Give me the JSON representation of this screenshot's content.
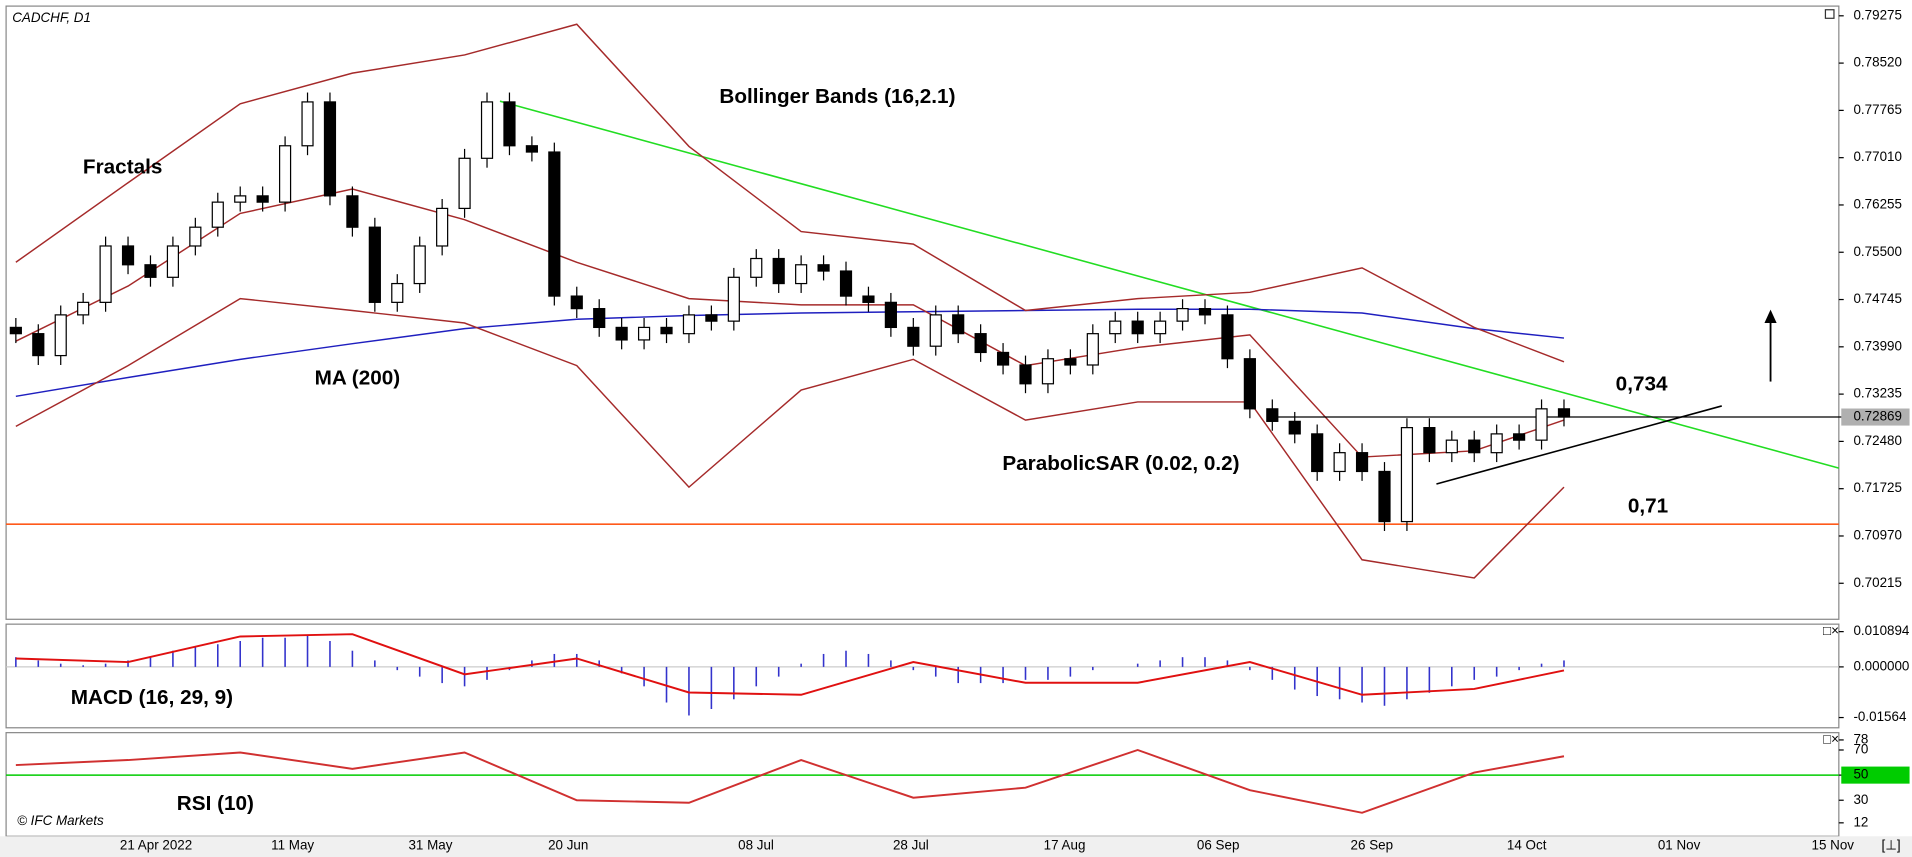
{
  "chart_data": [
    {
      "type": "candlestick",
      "title": "CADCHF, D1",
      "up_color": "#ffffff",
      "down_color": "#000000",
      "ohlc": [
        [
          0.743,
          0.7445,
          0.7405,
          0.742
        ],
        [
          0.742,
          0.7435,
          0.737,
          0.7385
        ],
        [
          0.7385,
          0.7465,
          0.737,
          0.745
        ],
        [
          0.745,
          0.7485,
          0.7435,
          0.747
        ],
        [
          0.747,
          0.7575,
          0.7455,
          0.756
        ],
        [
          0.756,
          0.7575,
          0.7515,
          0.753
        ],
        [
          0.753,
          0.7545,
          0.7495,
          0.751
        ],
        [
          0.751,
          0.7575,
          0.7495,
          0.756
        ],
        [
          0.756,
          0.7605,
          0.7545,
          0.759
        ],
        [
          0.759,
          0.7645,
          0.7575,
          0.763
        ],
        [
          0.763,
          0.7655,
          0.7615,
          0.764
        ],
        [
          0.764,
          0.7655,
          0.7615,
          0.763
        ],
        [
          0.763,
          0.7735,
          0.7615,
          0.772
        ],
        [
          0.772,
          0.7805,
          0.7705,
          0.779
        ],
        [
          0.779,
          0.7805,
          0.7625,
          0.764
        ],
        [
          0.764,
          0.7655,
          0.7575,
          0.759
        ],
        [
          0.759,
          0.7605,
          0.7455,
          0.747
        ],
        [
          0.747,
          0.7515,
          0.7455,
          0.75
        ],
        [
          0.75,
          0.7575,
          0.7485,
          0.756
        ],
        [
          0.756,
          0.7635,
          0.7545,
          0.762
        ],
        [
          0.762,
          0.7715,
          0.7605,
          0.77
        ],
        [
          0.77,
          0.7805,
          0.7685,
          0.779
        ],
        [
          0.779,
          0.7805,
          0.7705,
          0.772
        ],
        [
          0.772,
          0.7735,
          0.7695,
          0.771
        ],
        [
          0.771,
          0.7725,
          0.7465,
          0.748
        ],
        [
          0.748,
          0.7495,
          0.7445,
          0.746
        ],
        [
          0.746,
          0.7475,
          0.7415,
          0.743
        ],
        [
          0.743,
          0.7445,
          0.7395,
          0.741
        ],
        [
          0.741,
          0.7445,
          0.7395,
          0.743
        ],
        [
          0.743,
          0.7445,
          0.7405,
          0.742
        ],
        [
          0.742,
          0.7465,
          0.7405,
          0.745
        ],
        [
          0.745,
          0.7465,
          0.7425,
          0.744
        ],
        [
          0.744,
          0.7525,
          0.7425,
          0.751
        ],
        [
          0.751,
          0.7555,
          0.7495,
          0.754
        ],
        [
          0.754,
          0.7555,
          0.7485,
          0.75
        ],
        [
          0.75,
          0.7545,
          0.7485,
          0.753
        ],
        [
          0.753,
          0.7545,
          0.7505,
          0.752
        ],
        [
          0.752,
          0.7535,
          0.7465,
          0.748
        ],
        [
          0.748,
          0.7495,
          0.7455,
          0.747
        ],
        [
          0.747,
          0.7485,
          0.7415,
          0.743
        ],
        [
          0.743,
          0.7445,
          0.7385,
          0.74
        ],
        [
          0.74,
          0.7465,
          0.7385,
          0.745
        ],
        [
          0.745,
          0.7465,
          0.7405,
          0.742
        ],
        [
          0.742,
          0.7435,
          0.7375,
          0.739
        ],
        [
          0.739,
          0.7405,
          0.7355,
          0.737
        ],
        [
          0.737,
          0.7385,
          0.7325,
          0.734
        ],
        [
          0.734,
          0.7395,
          0.7325,
          0.738
        ],
        [
          0.738,
          0.7395,
          0.7355,
          0.737
        ],
        [
          0.737,
          0.7435,
          0.7355,
          0.742
        ],
        [
          0.742,
          0.7455,
          0.7405,
          0.744
        ],
        [
          0.744,
          0.7455,
          0.7405,
          0.742
        ],
        [
          0.742,
          0.7455,
          0.7405,
          0.744
        ],
        [
          0.744,
          0.7475,
          0.7425,
          0.746
        ],
        [
          0.746,
          0.7475,
          0.7435,
          0.745
        ],
        [
          0.745,
          0.7465,
          0.7365,
          0.738
        ],
        [
          0.738,
          0.7395,
          0.7285,
          0.73
        ],
        [
          0.73,
          0.7315,
          0.7265,
          0.728
        ],
        [
          0.728,
          0.7295,
          0.7245,
          0.726
        ],
        [
          0.726,
          0.7275,
          0.7185,
          0.72
        ],
        [
          0.72,
          0.7245,
          0.7185,
          0.723
        ],
        [
          0.723,
          0.7245,
          0.7185,
          0.72
        ],
        [
          0.72,
          0.7215,
          0.7105,
          0.712
        ],
        [
          0.712,
          0.7285,
          0.7105,
          0.727
        ],
        [
          0.727,
          0.7285,
          0.7215,
          0.723
        ],
        [
          0.723,
          0.7265,
          0.7215,
          0.725
        ],
        [
          0.725,
          0.7265,
          0.7215,
          0.723
        ],
        [
          0.723,
          0.7275,
          0.7215,
          0.726
        ],
        [
          0.726,
          0.7275,
          0.7235,
          0.725
        ],
        [
          0.725,
          0.7315,
          0.7235,
          0.73
        ],
        [
          0.73,
          0.7315,
          0.7272,
          0.7287
        ]
      ],
      "series": [
        {
          "name": "MA (200)",
          "color": "#1f1fbf",
          "values": [
            0.732,
            0.735,
            0.7379,
            0.7404,
            0.7428,
            0.7443,
            0.7449,
            0.7453,
            0.7455,
            0.7457,
            0.7459,
            0.7459,
            0.7453,
            0.7428,
            0.7413
          ]
        },
        {
          "name": "Bollinger Bands (16,2.1)",
          "color": "#a52a2a",
          "values": [
            0.7534,
            0.7661,
            0.7787,
            0.7836,
            0.7865,
            0.7914,
            0.7719,
            0.7583,
            0.7563,
            0.7457,
            0.7476,
            0.7486,
            0.7525,
            0.743,
            0.7375
          ]
        },
        {
          "color": "#a52a2a",
          "values": [
            0.7408,
            0.7496,
            0.7612,
            0.7651,
            0.7602,
            0.7534,
            0.7476,
            0.7466,
            0.7466,
            0.7369,
            0.7398,
            0.7418,
            0.7223,
            0.7233,
            0.7282
          ]
        },
        {
          "color": "#a52a2a",
          "values": [
            0.7272,
            0.7369,
            0.7476,
            0.7457,
            0.7437,
            0.7369,
            0.7175,
            0.733,
            0.7379,
            0.7282,
            0.7311,
            0.7311,
            0.7059,
            0.703,
            0.7175
          ]
        }
      ],
      "last_price": 0.72869,
      "ylim": [
        0.6964,
        0.7943
      ],
      "yticks": [
        0.79275,
        {
          "value": 0.7852,
          "label": "0.78520"
        },
        0.77765,
        {
          "value": 0.7701,
          "label": "0.77010"
        },
        0.76255,
        {
          "value": 0.755,
          "label": "0.75500"
        },
        0.74745,
        {
          "value": 0.7399,
          "label": "0.73990"
        },
        0.73235,
        {
          "value": 0.7248,
          "label": "0.72480"
        },
        0.71725,
        {
          "value": 0.7097,
          "label": "0.70970"
        },
        0.70215
      ],
      "x_labels": [
        "21 Apr 2022",
        "11 May",
        "31 May",
        "20 Jun",
        "08 Jul",
        "28 Jul",
        "17 Aug",
        "06 Sep",
        "26 Sep",
        "14 Oct",
        "01 Nov",
        "15 Nov"
      ],
      "annotations": [
        "Fractals",
        "Bollinger Bands (16,2.1)",
        "MA (200)",
        "ParabolicSAR (0.02, 0.2)",
        "0,734",
        "0,71"
      ],
      "copyright": "© IFC Markets"
    },
    {
      "type": "macd",
      "title": "MACD (16, 29, 9)",
      "hist_color": "#3333cc",
      "histogram": [
        0.003,
        0.002,
        0.001,
        0.0005,
        0.001,
        0.002,
        0.003,
        0.005,
        0.006,
        0.007,
        0.008,
        0.009,
        0.009,
        0.01,
        0.008,
        0.005,
        0.002,
        -0.001,
        -0.003,
        -0.005,
        -0.006,
        -0.004,
        -0.001,
        0.002,
        0.004,
        0.004,
        0.002,
        -0.002,
        -0.006,
        -0.011,
        -0.015,
        -0.013,
        -0.01,
        -0.006,
        -0.003,
        0.001,
        0.004,
        0.005,
        0.004,
        0.002,
        -0.001,
        -0.003,
        -0.005,
        -0.005,
        -0.005,
        -0.004,
        -0.004,
        -0.003,
        -0.001,
        0,
        0.001,
        0.002,
        0.003,
        0.003,
        0.002,
        -0.001,
        -0.004,
        -0.007,
        -0.009,
        -0.01,
        -0.011,
        -0.012,
        -0.01,
        -0.008,
        -0.006,
        -0.004,
        -0.003,
        -0.001,
        0.001,
        0.002
      ],
      "series": [
        {
          "color": "#e01010",
          "values": [
            0.0026,
            0.0015,
            0.0094,
            0.0101,
            -0.0023,
            0.0026,
            -0.0079,
            -0.0086,
            0.0015,
            -0.0049,
            -0.0049,
            0.0015,
            -0.0086,
            -0.0068,
            -0.0011
          ]
        }
      ],
      "ylim": [
        -0.0188,
        0.0132
      ],
      "yticks": [
        0.010894,
        {
          "value": 0,
          "label": "0.000000"
        },
        -0.01564
      ]
    },
    {
      "type": "line",
      "title": "RSI (10)",
      "series": [
        {
          "color": "#d03030",
          "values": [
            58,
            62,
            68,
            55,
            68,
            30,
            28,
            62,
            32,
            40,
            70,
            38,
            20,
            52,
            65
          ]
        }
      ],
      "level_color": "#00cc00",
      "ylim": [
        1.3,
        83.8
      ],
      "yticks": [
        78,
        70,
        50,
        30,
        12
      ]
    }
  ]
}
